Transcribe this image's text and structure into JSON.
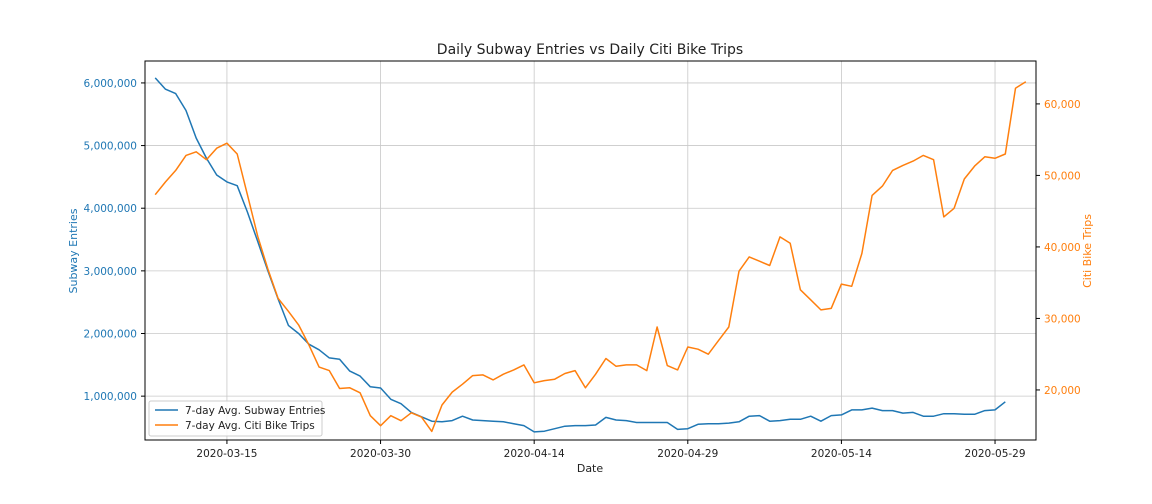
{
  "chart_data": {
    "type": "line",
    "title": "Daily Subway Entries vs Daily Citi Bike Trips",
    "xlabel": "Date",
    "ylabel_left": "Subway Entries",
    "ylabel_right": "Citi Bike Trips",
    "start_date": "2020-03-08",
    "xlim": [
      "2020-03-07",
      "2020-06-02"
    ],
    "x_ticks": [
      "2020-03-15",
      "2020-03-30",
      "2020-04-14",
      "2020-04-29",
      "2020-05-14",
      "2020-05-29"
    ],
    "ylim_left": [
      300000,
      6350000
    ],
    "y_ticks_left": [
      1000000,
      2000000,
      3000000,
      4000000,
      5000000,
      6000000
    ],
    "y_ticks_left_labels": [
      "1,000,000",
      "2,000,000",
      "3,000,000",
      "4,000,000",
      "5,000,000",
      "6,000,000"
    ],
    "ylim_right": [
      13000,
      66000
    ],
    "y_ticks_right": [
      20000,
      30000,
      40000,
      50000,
      60000
    ],
    "y_ticks_right_labels": [
      "20,000",
      "30,000",
      "40,000",
      "50,000",
      "60,000"
    ],
    "grid": true,
    "legend_position": "bottom-left",
    "colors": {
      "subway": "#1f77b4",
      "bike": "#ff7f0e",
      "grid": "#c8c8c8",
      "axis": "#000000"
    },
    "series": [
      {
        "name": "7-day Avg. Subway Entries",
        "axis": "left",
        "color": "#1f77b4",
        "start": "2020-03-08",
        "values": [
          6080000,
          5900000,
          5830000,
          5560000,
          5120000,
          4800000,
          4530000,
          4420000,
          4360000,
          3940000,
          3470000,
          3000000,
          2550000,
          2130000,
          2000000,
          1830000,
          1740000,
          1610000,
          1590000,
          1400000,
          1320000,
          1150000,
          1130000,
          950000,
          880000,
          740000,
          670000,
          600000,
          590000,
          610000,
          680000,
          620000,
          610000,
          600000,
          590000,
          560000,
          530000,
          430000,
          440000,
          480000,
          520000,
          530000,
          530000,
          540000,
          660000,
          620000,
          610000,
          580000,
          580000,
          580000,
          580000,
          470000,
          480000,
          550000,
          560000,
          560000,
          570000,
          590000,
          680000,
          690000,
          600000,
          610000,
          630000,
          630000,
          680000,
          600000,
          690000,
          700000,
          780000,
          780000,
          810000,
          770000,
          770000,
          730000,
          740000,
          680000,
          680000,
          720000,
          720000,
          710000,
          710000,
          770000,
          780000,
          910000
        ]
      },
      {
        "name": "7-day Avg. Citi Bike Trips",
        "axis": "right",
        "color": "#ff7f0e",
        "start": "2020-03-08",
        "values": [
          47300,
          49100,
          50700,
          52800,
          53300,
          52200,
          53800,
          54500,
          53000,
          47300,
          41500,
          36900,
          32800,
          31000,
          29100,
          26300,
          23200,
          22700,
          20200,
          20300,
          19600,
          16400,
          15000,
          16400,
          15700,
          16800,
          16200,
          14200,
          17900,
          19700,
          20800,
          22000,
          22100,
          21400,
          22200,
          22800,
          23500,
          21000,
          21300,
          21500,
          22300,
          22700,
          20300,
          22200,
          24400,
          23300,
          23500,
          23500,
          22700,
          28800,
          23400,
          22800,
          26000,
          25700,
          25000,
          26900,
          28800,
          36600,
          38600,
          38000,
          37400,
          41400,
          40500,
          34000,
          32600,
          31200,
          31400,
          34800,
          34500,
          39100,
          47200,
          48500,
          50700,
          51400,
          52000,
          52800,
          52200,
          44200,
          45400,
          49500,
          51300,
          52600,
          52400,
          53000,
          62200,
          63100
        ]
      }
    ]
  }
}
